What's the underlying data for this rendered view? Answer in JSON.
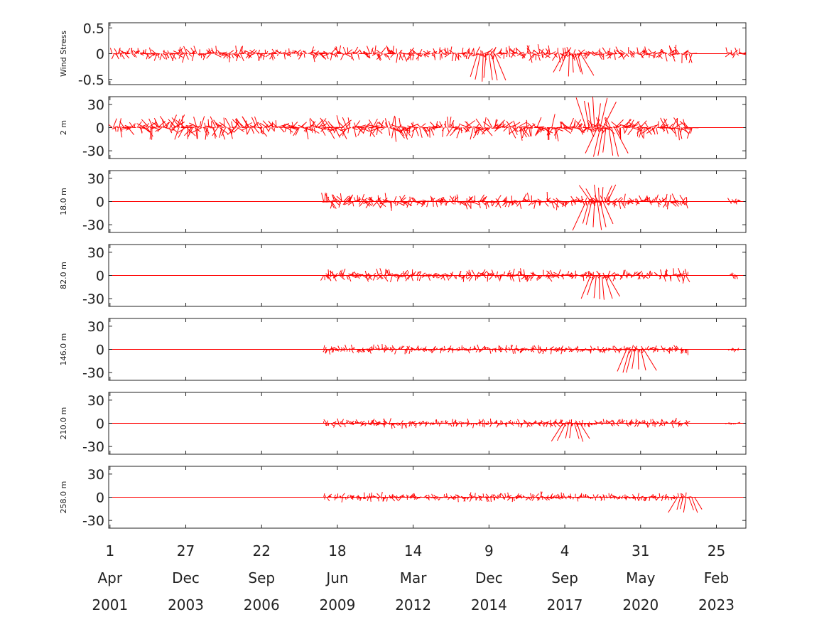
{
  "chart_data": {
    "type": "line",
    "chart_kind": "stick-vector time series",
    "series_color": "#ff0000",
    "x_axis": {
      "range": [
        "2001-03-15",
        "2024-03-20"
      ],
      "ticks": [
        {
          "day": "1",
          "month": "Apr",
          "year": "2001",
          "date": "2001-04-01"
        },
        {
          "day": "27",
          "month": "Dec",
          "year": "2003",
          "date": "2003-12-27"
        },
        {
          "day": "22",
          "month": "Sep",
          "year": "2006",
          "date": "2006-09-22"
        },
        {
          "day": "18",
          "month": "Jun",
          "year": "2009",
          "date": "2009-06-18"
        },
        {
          "day": "14",
          "month": "Mar",
          "year": "2012",
          "date": "2012-03-14"
        },
        {
          "day": "9",
          "month": "Dec",
          "year": "2014",
          "date": "2014-12-09"
        },
        {
          "day": "4",
          "month": "Sep",
          "year": "2017",
          "date": "2017-09-04"
        },
        {
          "day": "31",
          "month": "May",
          "year": "2020",
          "date": "2020-05-31"
        },
        {
          "day": "25",
          "month": "Feb",
          "year": "2023",
          "date": "2023-02-25"
        }
      ]
    },
    "panels": [
      {
        "label": "Wind Stress",
        "ylim": [
          -0.6,
          0.6
        ],
        "yticks": [
          {
            "value": 0.5,
            "text": "0.5"
          },
          {
            "value": 0,
            "text": "0"
          },
          {
            "value": -0.5,
            "text": "-0.5"
          }
        ],
        "amplitude": 0.2,
        "segments": [
          {
            "start": "2001-05-01",
            "end": "2022-04-15",
            "amplitude": 0.2
          },
          {
            "start": "2023-07-20",
            "end": "2024-02-15",
            "amplitude": 0.2
          }
        ],
        "baseline": [
          "2022-04-15",
          "2023-07-20"
        ],
        "spikes": [
          {
            "date": "2014-11-01",
            "value": -0.55
          },
          {
            "date": "2017-12-10",
            "value": -0.45
          }
        ]
      },
      {
        "label": "2 m",
        "ylim": [
          -40,
          40
        ],
        "yticks": [
          {
            "value": 30,
            "text": "30"
          },
          {
            "value": 0,
            "text": "0"
          },
          {
            "value": -30,
            "text": "-30"
          }
        ],
        "amplitude": 20,
        "segments": [
          {
            "start": "2001-05-01",
            "end": "2022-04-15",
            "amplitude": 20
          }
        ],
        "baseline": [
          "2022-04-15",
          "2024-02-15"
        ],
        "spikes": [
          {
            "date": "2018-10-01",
            "value": 40
          },
          {
            "date": "2019-03-01",
            "value": -38
          }
        ]
      },
      {
        "label": "18.0 m",
        "ylim": [
          -40,
          40
        ],
        "yticks": [
          {
            "value": 30,
            "text": "30"
          },
          {
            "value": 0,
            "text": "0"
          },
          {
            "value": -30,
            "text": "-30"
          }
        ],
        "amplitude": 13,
        "segments": [
          {
            "start": "2008-12-20",
            "end": "2022-02-20",
            "amplitude": 13
          },
          {
            "start": "2023-08-20",
            "end": "2024-01-15",
            "amplitude": 8
          }
        ],
        "baseline": [
          "2001-05-01",
          "2024-02-15"
        ],
        "spikes": [
          {
            "date": "2018-10-01",
            "value": -38
          },
          {
            "date": "2018-12-01",
            "value": 22
          }
        ]
      },
      {
        "label": "82.0 m",
        "ylim": [
          -40,
          40
        ],
        "yticks": [
          {
            "value": 30,
            "text": "30"
          },
          {
            "value": 0,
            "text": "0"
          },
          {
            "value": -30,
            "text": "-30"
          }
        ],
        "amplitude": 11,
        "segments": [
          {
            "start": "2008-12-20",
            "end": "2022-02-20",
            "amplitude": 11
          },
          {
            "start": "2023-08-20",
            "end": "2023-11-30",
            "amplitude": 8
          }
        ],
        "baseline": [
          "2001-05-01",
          "2024-02-15"
        ],
        "spikes": [
          {
            "date": "2018-12-01",
            "value": -33
          }
        ]
      },
      {
        "label": "146.0 m",
        "ylim": [
          -40,
          40
        ],
        "yticks": [
          {
            "value": 30,
            "text": "30"
          },
          {
            "value": 0,
            "text": "0"
          },
          {
            "value": -30,
            "text": "-30"
          }
        ],
        "amplitude": 8,
        "segments": [
          {
            "start": "2008-12-20",
            "end": "2022-02-20",
            "amplitude": 8
          },
          {
            "start": "2023-08-20",
            "end": "2023-12-10",
            "amplitude": 6
          }
        ],
        "baseline": [
          "2001-05-01",
          "2024-02-15"
        ],
        "spikes": [
          {
            "date": "2020-03-20",
            "value": -30
          }
        ]
      },
      {
        "label": "210.0 m",
        "ylim": [
          -40,
          40
        ],
        "yticks": [
          {
            "value": 30,
            "text": "30"
          },
          {
            "value": 0,
            "text": "0"
          },
          {
            "value": -30,
            "text": "-30"
          }
        ],
        "amplitude": 8,
        "segments": [
          {
            "start": "2008-12-20",
            "end": "2022-02-20",
            "amplitude": 8
          },
          {
            "start": "2023-07-20",
            "end": "2023-12-10",
            "amplitude": 6
          }
        ],
        "baseline": [
          "2001-05-01",
          "2024-02-15"
        ],
        "spikes": [
          {
            "date": "2017-12-01",
            "value": -24
          }
        ]
      },
      {
        "label": "258.0 m",
        "ylim": [
          -40,
          40
        ],
        "yticks": [
          {
            "value": 30,
            "text": "30"
          },
          {
            "value": 0,
            "text": "0"
          },
          {
            "value": -30,
            "text": "-30"
          }
        ],
        "amplitude": 8,
        "segments": [
          {
            "start": "2008-12-20",
            "end": "2022-02-20",
            "amplitude": 8
          }
        ],
        "baseline": [
          "2001-05-01",
          "2024-02-15"
        ],
        "spikes": [
          {
            "date": "2022-01-20",
            "value": -20
          }
        ]
      }
    ]
  }
}
